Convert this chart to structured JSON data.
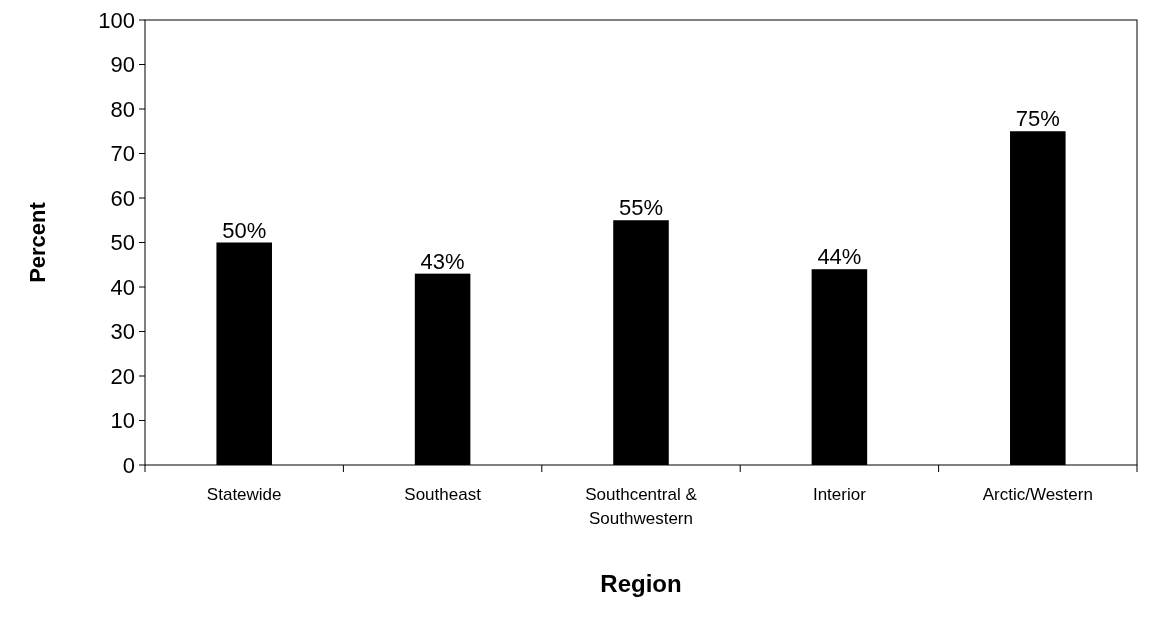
{
  "chart_data": {
    "type": "bar",
    "xlabel": "Region",
    "ylabel": "Percent",
    "categories": [
      "Statewide",
      "Southeast",
      "Southcentral & Southwestern",
      "Interior",
      "Arctic/Western"
    ],
    "values": [
      50,
      43,
      55,
      44,
      75
    ],
    "color": "#000000",
    "value_labels": [
      "50%",
      "43%",
      "55%",
      "44%",
      "75%"
    ],
    "ylim": [
      0,
      100
    ],
    "yticks": [
      0,
      10,
      20,
      30,
      40,
      50,
      60,
      70,
      80,
      90,
      100
    ]
  }
}
